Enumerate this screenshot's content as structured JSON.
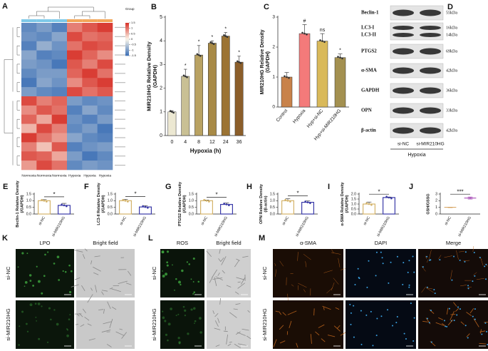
{
  "chart_data": [
    {
      "type": "heatmap",
      "panel_label": "A",
      "legend_title": "Group",
      "columns": [
        "Normoxia",
        "Normoxia",
        "Normoxia",
        "Hypoxia",
        "Hypoxia",
        "Hypoxia"
      ],
      "column_colors": [
        "#7fc9e8",
        "#7fc9e8",
        "#7fc9e8",
        "#f2a65a",
        "#f2a65a",
        "#f2a65a"
      ],
      "values": [
        [
          -1.2,
          -1.0,
          -1.3,
          0.9,
          1.2,
          1.4
        ],
        [
          -1.1,
          -1.2,
          -0.9,
          1.3,
          1.0,
          1.1
        ],
        [
          -1.3,
          -0.8,
          -1.1,
          1.0,
          1.3,
          1.2
        ],
        [
          -0.9,
          -1.3,
          -1.2,
          1.4,
          1.1,
          0.8
        ],
        [
          -1.0,
          -1.1,
          -1.4,
          1.2,
          0.9,
          1.3
        ],
        [
          -1.2,
          -1.0,
          -1.0,
          1.1,
          1.4,
          1.0
        ],
        [
          -1.4,
          -0.9,
          -1.1,
          0.8,
          1.2,
          1.4
        ],
        [
          -1.0,
          -1.2,
          -1.3,
          1.3,
          1.0,
          1.2
        ],
        [
          1.3,
          0.9,
          1.1,
          -1.0,
          -1.2,
          -1.1
        ],
        [
          0.8,
          1.2,
          1.0,
          -1.3,
          -0.9,
          -1.2
        ],
        [
          1.1,
          0.6,
          1.4,
          -1.1,
          -1.3,
          -1.0
        ],
        [
          0.5,
          1.3,
          0.9,
          -1.2,
          -1.0,
          -1.4
        ],
        [
          1.4,
          1.0,
          0.7,
          -0.9,
          -1.2,
          -1.3
        ],
        [
          0.9,
          0.4,
          1.2,
          -1.3,
          -1.1,
          -1.0
        ],
        [
          1.2,
          1.1,
          0.6,
          -1.0,
          -1.4,
          -1.2
        ],
        [
          0.7,
          1.3,
          1.0,
          -1.2,
          -1.0,
          -1.1
        ]
      ],
      "zlim": [
        -1.5,
        1.5
      ],
      "zticks": [
        1.5,
        1,
        0.5,
        0,
        -0.5,
        -1,
        -1.5
      ],
      "low_color": "#3b6fb6",
      "high_color": "#d73027"
    },
    {
      "type": "bar",
      "panel_label": "B",
      "ylabel": [
        "MIR210HG Relative Density",
        "(GAPDH)"
      ],
      "xlabel": "Hypoxia (h)",
      "categories": [
        "0",
        "4",
        "8",
        "12",
        "24",
        "36"
      ],
      "values": [
        1.0,
        2.5,
        3.4,
        3.9,
        4.2,
        3.1
      ],
      "errors": [
        0.05,
        0.3,
        0.4,
        0.1,
        0.15,
        0.25
      ],
      "annotations": [
        null,
        "*",
        "*",
        "*",
        "*",
        "*"
      ],
      "colors": [
        "#ece8d2",
        "#c9c094",
        "#b9a262",
        "#a88a46",
        "#9c7434",
        "#8b5e2a"
      ],
      "bar_style": "solid",
      "ylim": [
        0,
        5
      ],
      "yticks": [
        0,
        1,
        2,
        3,
        4,
        5
      ]
    },
    {
      "type": "bar",
      "panel_label": "C",
      "ylabel": [
        "MIR210HG Relative Density",
        "(GAPDH)"
      ],
      "categories": [
        "Control",
        "Hypoxia",
        "Hyp+si-NC",
        "Hyp+si-MIR210HG"
      ],
      "values": [
        1.0,
        2.45,
        2.2,
        1.65
      ],
      "errors": [
        0.15,
        0.3,
        0.25,
        0.12
      ],
      "annotations": [
        null,
        "#",
        "ns",
        "*"
      ],
      "colors": [
        "#c8824a",
        "#f47a7a",
        "#d9b95a",
        "#a39050"
      ],
      "bar_style": "solid",
      "ylim": [
        0,
        3
      ],
      "yticks": [
        0,
        1,
        2,
        3
      ]
    },
    {
      "type": "bar",
      "panel_label": "E",
      "ylabel": [
        "Beclin-1 Relative Density",
        "(/GAPDH)"
      ],
      "categories": [
        "si-NC",
        "si-MIR210HG"
      ],
      "values": [
        1.0,
        0.65
      ],
      "errors": [
        0.08,
        0.15
      ],
      "significance": "*",
      "colors": [
        "#d4b36a",
        "#3a3aa8"
      ],
      "bar_style": "outline",
      "ylim": [
        0,
        1.5
      ],
      "yticks": [
        {
          "value": 0,
          "label": "0.0"
        },
        0.5,
        {
          "value": 1,
          "label": "1.0"
        },
        1.5
      ]
    },
    {
      "type": "bar",
      "panel_label": "F",
      "ylabel": [
        "LC3-II Relative Density",
        "(/GAPDH)"
      ],
      "categories": [
        "si-NC",
        "si-MIR210HG"
      ],
      "values": [
        1.0,
        0.53
      ],
      "errors": [
        0.1,
        0.1
      ],
      "significance": "*",
      "colors": [
        "#d4b36a",
        "#3a3aa8"
      ],
      "bar_style": "outline",
      "ylim": [
        0,
        1.5
      ],
      "yticks": [
        {
          "value": 0,
          "label": "0.0"
        },
        0.5,
        {
          "value": 1,
          "label": "1.0"
        },
        1.5
      ]
    },
    {
      "type": "bar",
      "panel_label": "G",
      "ylabel": [
        "PTGS2 Relative Density",
        "(/GAPDH)"
      ],
      "categories": [
        "si-NC",
        "si-MIR210HG"
      ],
      "values": [
        1.0,
        0.72
      ],
      "errors": [
        0.05,
        0.1
      ],
      "significance": "*",
      "colors": [
        "#d4b36a",
        "#3a3aa8"
      ],
      "bar_style": "outline",
      "ylim": [
        0,
        1.5
      ],
      "yticks": [
        {
          "value": 0,
          "label": "0.0"
        },
        0.5,
        {
          "value": 1,
          "label": "1.0"
        },
        1.5
      ]
    },
    {
      "type": "bar",
      "panel_label": "H",
      "ylabel": [
        "OPN Relative Density",
        "(/β-actin)"
      ],
      "categories": [
        "si-NC",
        "si-MIR210HG"
      ],
      "values": [
        1.0,
        0.88
      ],
      "errors": [
        0.15,
        0.1
      ],
      "significance": "*",
      "colors": [
        "#d4b36a",
        "#3a3aa8"
      ],
      "bar_style": "outline",
      "ylim": [
        0,
        1.5
      ],
      "yticks": [
        {
          "value": 0,
          "label": "0.0"
        },
        0.5,
        {
          "value": 1,
          "label": "1.0"
        },
        1.5
      ]
    },
    {
      "type": "bar",
      "panel_label": "I",
      "ylabel": [
        "α-SMA Relative Density",
        "(/GAPDH)"
      ],
      "categories": [
        "si-NC",
        "si-MIR210HG"
      ],
      "values": [
        1.0,
        1.65
      ],
      "errors": [
        0.2,
        0.05
      ],
      "significance": "*",
      "colors": [
        "#d4b36a",
        "#3a3aa8"
      ],
      "bar_style": "outline",
      "ylim": [
        0,
        2
      ],
      "yticks": [
        {
          "value": 0,
          "label": "0.0"
        },
        0.5,
        {
          "value": 1,
          "label": "1.0"
        },
        1.5,
        {
          "value": 2,
          "label": "2.0"
        }
      ]
    },
    {
      "type": "meanline",
      "panel_label": "J",
      "ylabel": [
        "GSH/GSSG"
      ],
      "categories": [
        "si-NC",
        "si-MIR210HG"
      ],
      "values": [
        1.0,
        2.4
      ],
      "errors": [
        0.03,
        0.15
      ],
      "significance": "***",
      "colors": [
        "#d4a05a",
        "#a040b0"
      ],
      "ylim": [
        0,
        3
      ],
      "yticks": [
        0,
        1,
        2,
        3
      ]
    }
  ],
  "blot": {
    "panel_label": "D",
    "proteins": [
      {
        "names": [
          "Beclin-1"
        ],
        "sizes": [
          "55kDa"
        ]
      },
      {
        "names": [
          "LC3-I",
          "LC3-II"
        ],
        "sizes": [
          "16kDa",
          "14kDa"
        ]
      },
      {
        "names": [
          "PTGS2"
        ],
        "sizes": [
          "69kDa"
        ]
      },
      {
        "names": [
          "α-SMA"
        ],
        "sizes": [
          "42kDa"
        ]
      },
      {
        "names": [
          "GAPDH"
        ],
        "sizes": [
          "36kDa"
        ]
      },
      {
        "names": [
          "OPN"
        ],
        "sizes": [
          "33kDa"
        ]
      },
      {
        "names": [
          "β-actin"
        ],
        "sizes": [
          "42kDa"
        ]
      }
    ],
    "lanes": [
      "si-NC",
      "si-MIR210HG"
    ],
    "condition": "Hypoxia"
  },
  "micrographs": [
    {
      "panel_label": "K",
      "columns": [
        "LPO",
        "Bright field"
      ],
      "rows": [
        "si-NC",
        "si-MIR210HG"
      ],
      "header_colors": [
        "#000000",
        "#000000"
      ],
      "tints": [
        "#0b160b",
        "#c9c9c9"
      ]
    },
    {
      "panel_label": "L",
      "columns": [
        "ROS",
        "Bright field"
      ],
      "rows": [
        "si-NC",
        "si-MIR210HG"
      ],
      "header_colors": [
        "#000000",
        "#000000"
      ],
      "tints": [
        "#0a140a",
        "#cfcfcf"
      ]
    },
    {
      "panel_label": "M",
      "columns": [
        "α-SMA",
        "DAPI",
        "Merge"
      ],
      "rows": [
        "si-NC",
        "si-MIR210HG"
      ],
      "header_colors": [
        "#e0302a",
        "#2a8ad8",
        "#000000"
      ],
      "tints": [
        "#1a0d05",
        "#050a14",
        "#140b08"
      ]
    }
  ]
}
